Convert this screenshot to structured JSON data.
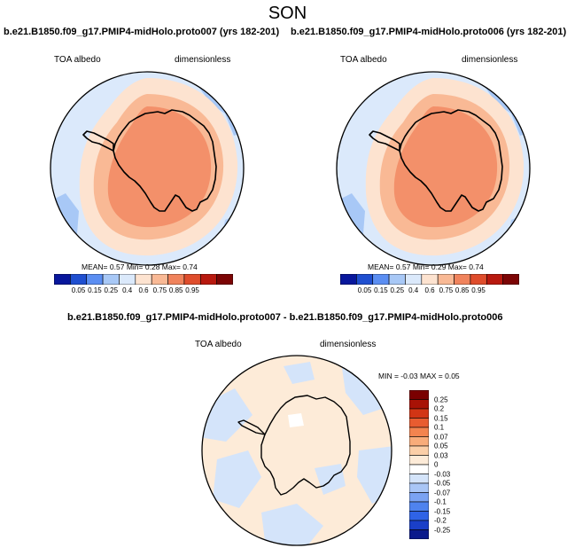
{
  "season": "SON",
  "colors": {
    "abs_scale": [
      "#08179c",
      "#1f4fd0",
      "#5b8ef2",
      "#a8c8f6",
      "#dbe9fb",
      "#fde3d0",
      "#f9b995",
      "#f0835c",
      "#df4d2c",
      "#b8190f",
      "#7c0505"
    ],
    "diff_scale": [
      "#0a1a8c",
      "#1a3fc8",
      "#2f63e6",
      "#4f83ee",
      "#7ba3f2",
      "#a9c6f6",
      "#d4e4fa",
      "#ffffff",
      "#fdebd8",
      "#fbcfa8",
      "#f8ac7a",
      "#f3844f",
      "#e85c30",
      "#d23515",
      "#a81206",
      "#7a0000"
    ]
  },
  "panels": [
    {
      "title": "b.e21.B1850.f09_g17.PMIP4-midHolo.proto007 (yrs 182-201)",
      "variable": "TOA albedo",
      "units": "dimensionless",
      "mean_label": "MEAN=",
      "mean": "0.57",
      "min_label": "Min=",
      "min": "0.28",
      "max_label": "Max=",
      "max": "0.74"
    },
    {
      "title": "b.e21.B1850.f09_g17.PMIP4-midHolo.proto006 (yrs 182-201)",
      "variable": "TOA albedo",
      "units": "dimensionless",
      "mean_label": "MEAN=",
      "mean": "0.57",
      "min_label": "Min=",
      "min": "0.29",
      "max_label": "Max=",
      "max": "0.74"
    }
  ],
  "colorbar_labels": [
    "0.05",
    "0.15",
    "0.25",
    "0.4",
    "0.6",
    "0.75",
    "0.85",
    "0.95"
  ],
  "diff": {
    "title": "b.e21.B1850.f09_g17.PMIP4-midHolo.proto007 - b.e21.B1850.f09_g17.PMIP4-midHolo.proto006",
    "variable": "TOA albedo",
    "units": "dimensionless",
    "stats": "MIN =  -0.03 MAX =   0.05",
    "labels": [
      "0.25",
      "0.2",
      "0.15",
      "0.1",
      "0.07",
      "0.05",
      "0.03",
      "0",
      "-0.03",
      "-0.05",
      "-0.07",
      "-0.1",
      "-0.15",
      "-0.2",
      "-0.25"
    ]
  }
}
